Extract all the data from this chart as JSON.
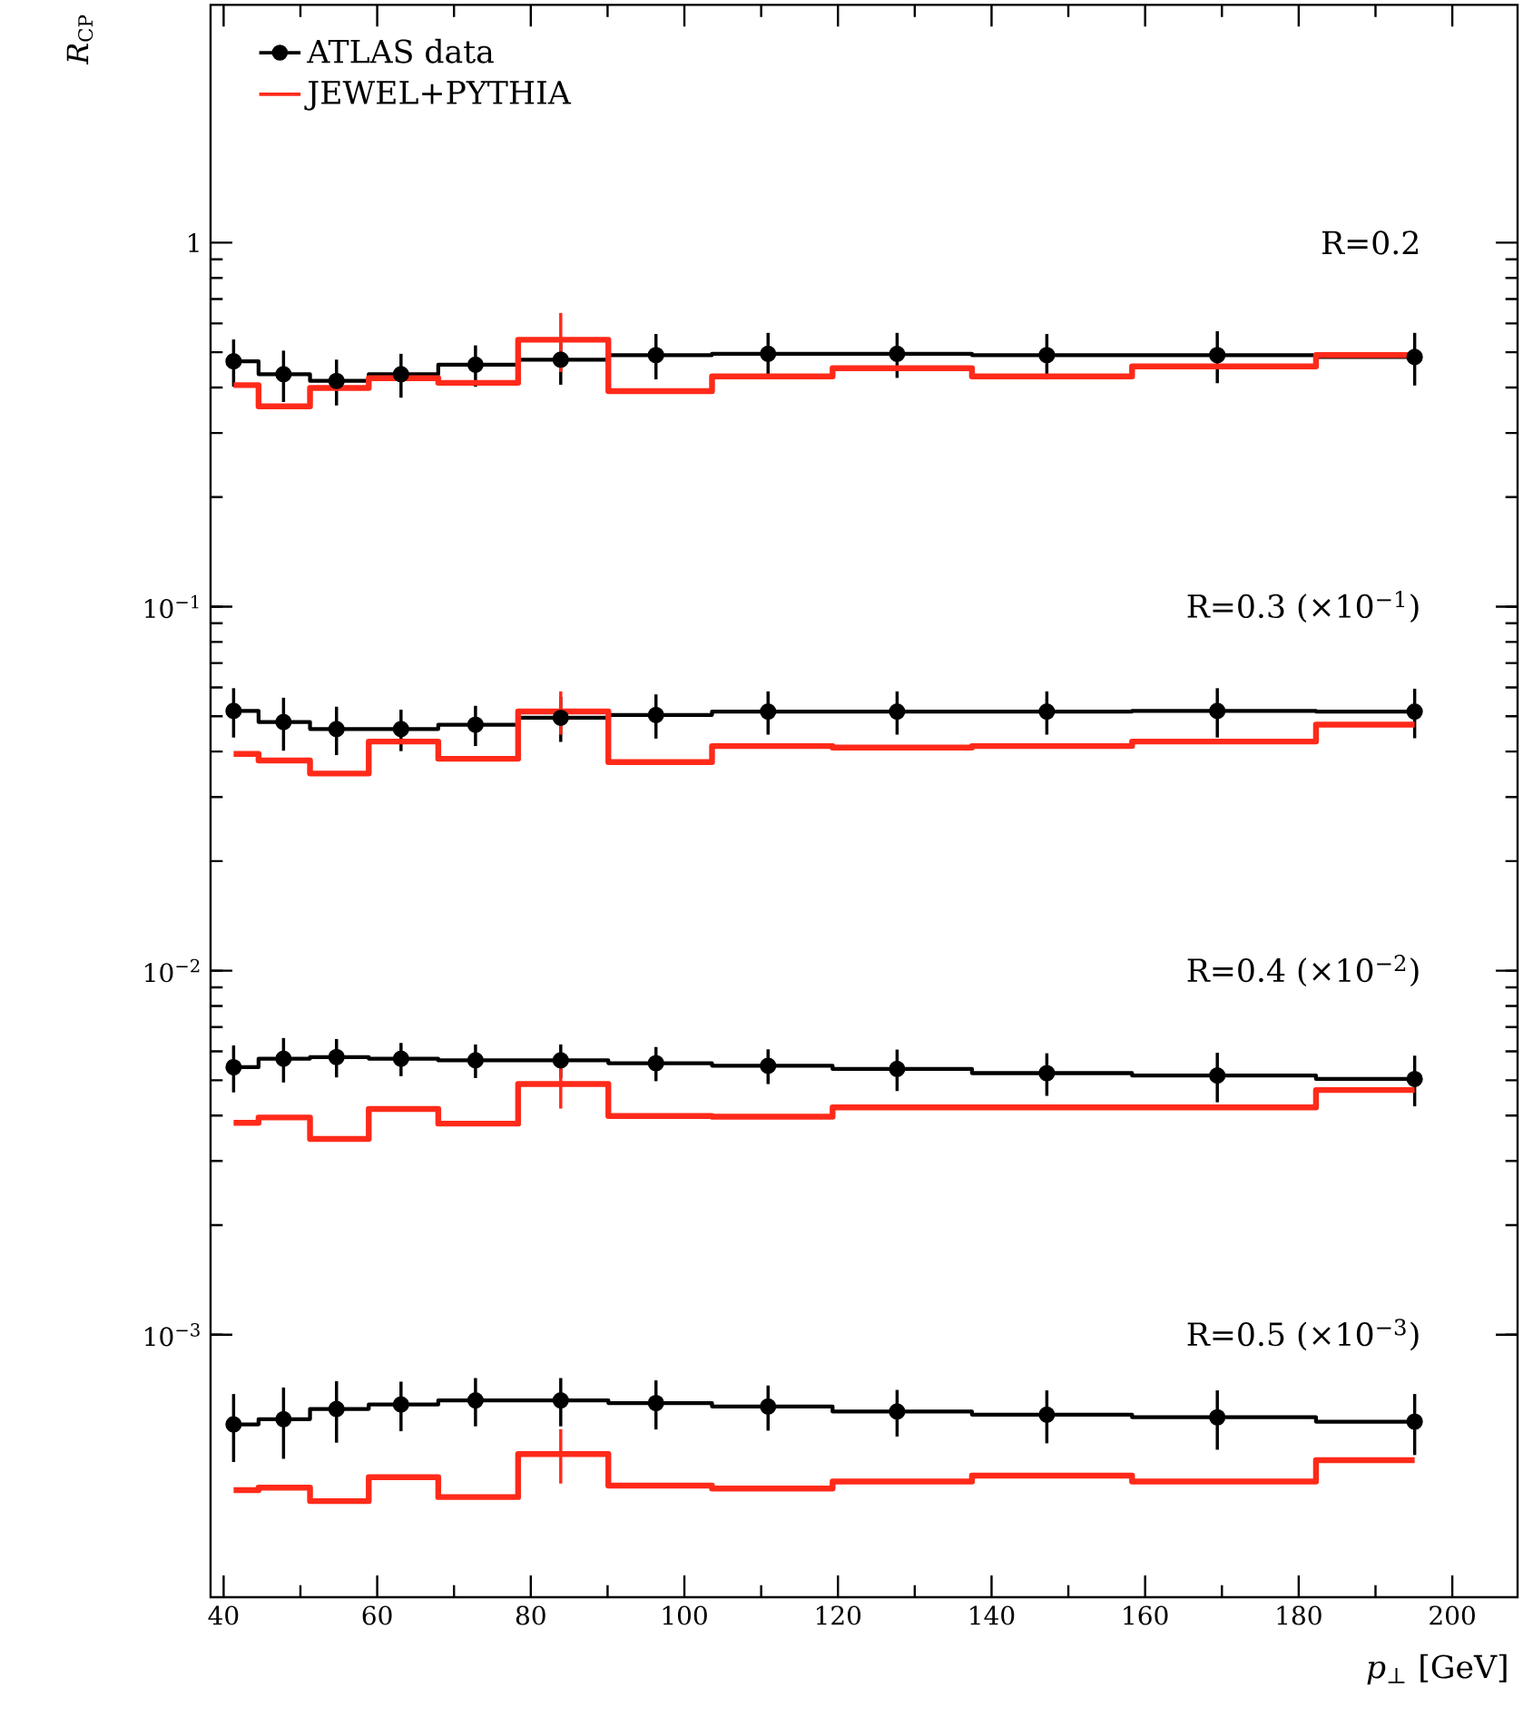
{
  "chart_data": {
    "type": "step",
    "xlabel": "*p*$_{⊥}$ [GeV]",
    "ylabel": "*R*$_{CP}$",
    "log": true,
    "grid": false,
    "legend": "top left",
    "line_style": "solid",
    "x": [
      41.3,
      47.8,
      54.7,
      63.1,
      72.8,
      83.9,
      96.3,
      110.9,
      127.7,
      147.2,
      169.4,
      195.1
    ],
    "xlim": [
      38.3,
      208.5
    ],
    "xticks": [
      40,
      60,
      80,
      100,
      120,
      140,
      160,
      180,
      200
    ],
    "ylim": [
      0.00019,
      4.5
    ],
    "yticks": [
      {
        "value": 0.001,
        "label": "10$^{−3}$"
      },
      {
        "value": 0.01,
        "label": "10$^{−2}$"
      },
      {
        "value": 0.1,
        "label": "10$^{−1}$"
      },
      1
    ],
    "series": [
      {
        "name": "ATLAS data",
        "marker": "circle",
        "color": "#000000",
        "values": [
          0.472,
          0.435,
          0.417,
          0.435,
          0.462,
          0.477,
          0.491,
          0.495,
          0.495,
          0.491,
          0.491,
          0.485
        ],
        "errors": [
          0.07,
          0.07,
          0.06,
          0.06,
          0.06,
          0.07,
          0.07,
          0.07,
          0.07,
          0.07,
          0.08,
          0.08
        ]
      },
      {
        "name": "JEWEL+PYTHIA",
        "marker": "none",
        "color": "#ff2a1a",
        "values": [
          0.406,
          0.355,
          0.399,
          0.424,
          0.412,
          0.541,
          0.391,
          0.429,
          0.452,
          0.429,
          0.457,
          0.491
        ],
        "errors": [
          null,
          null,
          null,
          null,
          null,
          0.1,
          null,
          null,
          null,
          null,
          null,
          null
        ]
      },
      {
        "marker": "circle",
        "color": "#000000",
        "values": [
          0.0517,
          0.0482,
          0.0461,
          0.0461,
          0.0474,
          0.0495,
          0.0504,
          0.0515,
          0.0515,
          0.0515,
          0.0517,
          0.0515
        ],
        "errors": [
          0.008,
          0.008,
          0.007,
          0.006,
          0.006,
          0.007,
          0.007,
          0.007,
          0.007,
          0.007,
          0.008,
          0.008
        ]
      },
      {
        "marker": "none",
        "color": "#ff2a1a",
        "values": [
          0.0394,
          0.0378,
          0.0348,
          0.0426,
          0.0382,
          0.0515,
          0.0374,
          0.0414,
          0.041,
          0.0414,
          0.0426,
          0.0474
        ],
        "errors": [
          null,
          null,
          null,
          null,
          null,
          0.007,
          null,
          null,
          null,
          null,
          null,
          null
        ]
      },
      {
        "marker": "circle",
        "color": "#000000",
        "values": [
          0.00543,
          0.00573,
          0.00579,
          0.00573,
          0.00567,
          0.00567,
          0.00557,
          0.00548,
          0.00537,
          0.00523,
          0.00515,
          0.00504
        ],
        "errors": [
          0.0008,
          0.0008,
          0.0007,
          0.0006,
          0.0006,
          0.0006,
          0.0006,
          0.0006,
          0.0007,
          0.0007,
          0.0008,
          0.0008
        ]
      },
      {
        "marker": "none",
        "color": "#ff2a1a",
        "values": [
          0.00382,
          0.00395,
          0.00345,
          0.00417,
          0.0038,
          0.00488,
          0.00399,
          0.00397,
          0.00421,
          0.00421,
          0.00421,
          0.0047
        ],
        "errors": [
          null,
          null,
          null,
          null,
          null,
          0.0007,
          null,
          null,
          null,
          null,
          null,
          null
        ]
      },
      {
        "marker": "circle",
        "color": "#000000",
        "values": [
          0.000567,
          0.000586,
          0.000625,
          0.000643,
          0.00066,
          0.00066,
          0.000649,
          0.000635,
          0.000615,
          0.000603,
          0.000593,
          0.000577
        ],
        "errors": [
          0.00012,
          0.00013,
          0.00012,
          0.0001,
          0.0001,
          0.0001,
          0.0001,
          9e-05,
          9e-05,
          0.0001,
          0.00011,
          0.00011
        ]
      },
      {
        "marker": "none",
        "color": "#ff2a1a",
        "values": [
          0.000374,
          0.00038,
          0.000349,
          0.000406,
          0.000358,
          0.00047,
          0.000385,
          0.000378,
          0.000395,
          0.00041,
          0.000395,
          0.000452
        ],
        "errors": [
          null,
          null,
          null,
          null,
          null,
          8e-05,
          null,
          null,
          null,
          null,
          null,
          null
        ]
      }
    ],
    "annotations": [
      "R=0.2",
      "R=0.3 (×10$^{−1}$)",
      "R=0.4 (×10$^{−2}$)",
      "R=0.5 (×10$^{−3}$)"
    ]
  }
}
